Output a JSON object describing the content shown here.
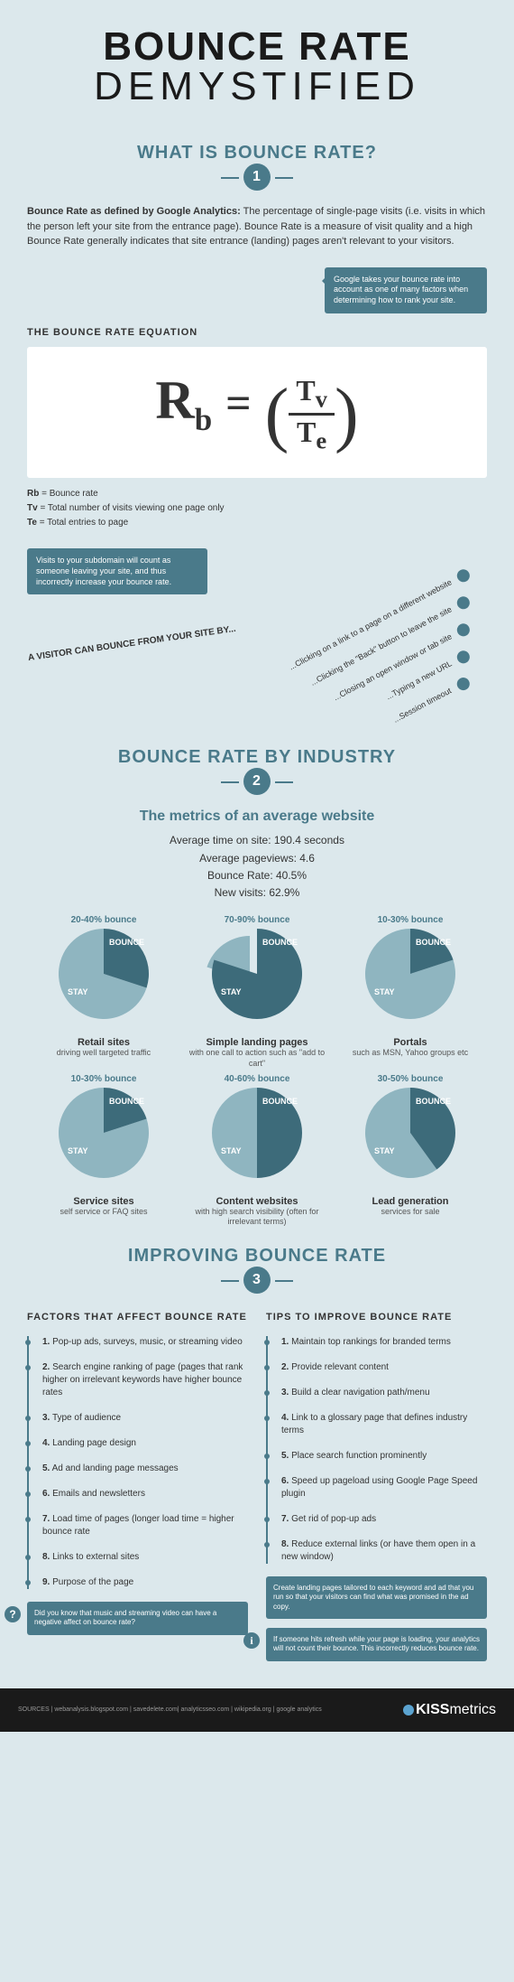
{
  "header": {
    "title": "BOUNCE RATE",
    "subtitle": "DEMYSTIFIED"
  },
  "colors": {
    "accent": "#4a7a8a",
    "bg": "#dce8ec",
    "dark": "#1a1a1a",
    "pie_bounce": "#3d6b7a",
    "pie_stay": "#8fb5c0"
  },
  "section1": {
    "title": "WHAT IS BOUNCE RATE?",
    "num": "1",
    "intro_bold": "Bounce Rate as defined by Google Analytics:",
    "intro": " The percentage of single-page visits (i.e. visits in which the person left your site from the entrance page). Bounce Rate is a measure of visit quality and a high Bounce Rate generally indicates that site entrance (landing) pages aren't relevant to your visitors.",
    "callout": "Google takes your bounce rate into account as one of many factors when determining how to rank your site.",
    "eq_label": "THE BOUNCE RATE EQUATION",
    "legend": [
      {
        "sym": "Rb",
        "txt": "= Bounce rate"
      },
      {
        "sym": "Tv",
        "txt": "= Total number of visits viewing one page only"
      },
      {
        "sym": "Te",
        "txt": "= Total entries to page"
      }
    ],
    "callout2": "Visits to your subdomain will count as someone leaving your site, and thus incorrectly increase your bounce rate.",
    "visitor_label": "A VISITOR CAN BOUNCE FROM YOUR SITE BY...",
    "ways": [
      "...Clicking on a link to a page on a different website",
      "...Clicking the \"Back\" button to leave the site",
      "...Closing an open window or tab site",
      "...Typing a new URL",
      "...Session timeout"
    ]
  },
  "section2": {
    "title": "BOUNCE RATE BY INDUSTRY",
    "num": "2",
    "metrics_title": "The metrics of an average website",
    "metrics": [
      "Average time on site: 190.4 seconds",
      "Average pageviews: 4.6",
      "Bounce Rate: 40.5%",
      "New visits: 62.9%"
    ],
    "pies": [
      {
        "range": "20-40% bounce",
        "bounce": 30,
        "title": "Retail sites",
        "desc": "driving well targeted traffic"
      },
      {
        "range": "70-90% bounce",
        "bounce": 80,
        "title": "Simple landing pages",
        "desc": "with one call to action such as \"add to cart\"",
        "exploded": true
      },
      {
        "range": "10-30% bounce",
        "bounce": 20,
        "title": "Portals",
        "desc": "such as MSN, Yahoo groups etc"
      },
      {
        "range": "10-30% bounce",
        "bounce": 20,
        "title": "Service sites",
        "desc": "self service or FAQ sites"
      },
      {
        "range": "40-60% bounce",
        "bounce": 50,
        "title": "Content websites",
        "desc": "with high search visibility (often for irrelevant terms)"
      },
      {
        "range": "30-50% bounce",
        "bounce": 40,
        "title": "Lead generation",
        "desc": "services for sale"
      }
    ]
  },
  "section3": {
    "title": "IMPROVING BOUNCE RATE",
    "num": "3",
    "factors_title": "FACTORS THAT AFFECT BOUNCE RATE",
    "tips_title": "TIPS TO IMPROVE BOUNCE RATE",
    "factors": [
      "Pop-up ads, surveys, music, or streaming video",
      "Search engine ranking of page (pages that rank higher on irrelevant keywords have higher bounce rates",
      "Type of audience",
      "Landing page design",
      "Ad and landing page messages",
      "Emails and newsletters",
      "Load time of pages (longer load time = higher bounce rate",
      "Links to external sites",
      "Purpose of the page"
    ],
    "tips": [
      "Maintain top rankings for branded terms",
      "Provide relevant content",
      "Build a clear navigation path/menu",
      "Link to a glossary page that defines industry terms",
      "Place search function prominently",
      "Speed up pageload using Google Page Speed plugin",
      "Get rid of pop-up ads",
      "Reduce external links (or have them open in a new window)"
    ],
    "factors_tip": "Did you know that music and streaming video can have a negative affect on bounce rate?",
    "tips_tip1": "Create landing pages tailored to each keyword and ad that you run so that your visitors can find what was promised in the ad copy.",
    "tips_tip2": "If someone hits refresh while your page is loading, your analytics will not count their bounce. This incorrectly reduces bounce rate."
  },
  "footer": {
    "sources": "SOURCES | webanalysis.blogspot.com | savedelete.com| analyticsseo.com | wikipedia.org | google analytics",
    "logo_bold": "KISS",
    "logo_rest": "metrics"
  }
}
